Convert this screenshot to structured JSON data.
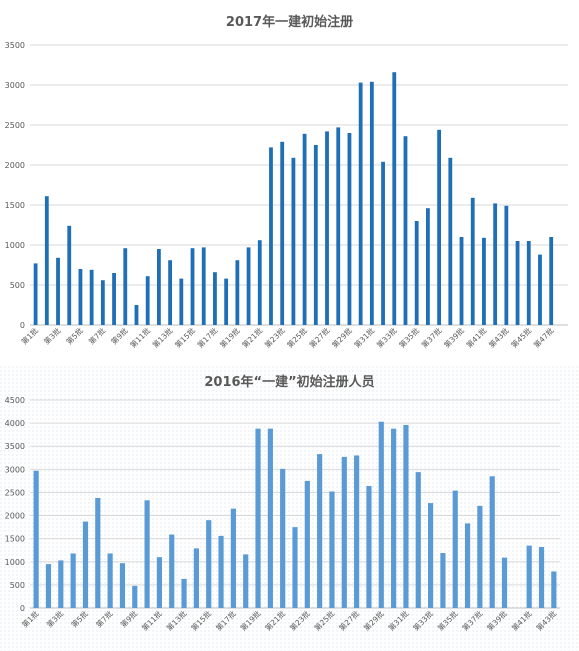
{
  "chart_data": [
    {
      "type": "bar",
      "title": "2017年一建初始注册",
      "xlabel": "",
      "ylabel": "",
      "ylim": [
        0,
        3500
      ],
      "yticks": [
        0,
        500,
        1000,
        1500,
        2000,
        2500,
        3000,
        3500
      ],
      "grid": true,
      "bar_color": "#1f6fb6",
      "categories": [
        "第1批",
        "第2批",
        "第3批",
        "第4批",
        "第5批",
        "第6批",
        "第7批",
        "第8批",
        "第9批",
        "第10批",
        "第11批",
        "第12批",
        "第13批",
        "第14批",
        "第15批",
        "第16批",
        "第17批",
        "第18批",
        "第19批",
        "第20批",
        "第21批",
        "第22批",
        "第23批",
        "第24批",
        "第25批",
        "第26批",
        "第27批",
        "第28批",
        "第29批",
        "第30批",
        "第31批",
        "第32批",
        "第33批",
        "第34批",
        "第35批",
        "第36批",
        "第37批",
        "第38批",
        "第39批",
        "第40批",
        "第41批",
        "第42批",
        "第43批",
        "第44批",
        "第45批",
        "第46批",
        "第47批",
        "第48批"
      ],
      "shown_tick_labels": [
        "第1批",
        "第3批",
        "第5批",
        "第7批",
        "第9批",
        "第11批",
        "第13批",
        "第15批",
        "第17批",
        "第19批",
        "第21批",
        "第23批",
        "第25批",
        "第27批",
        "第29批",
        "第31批",
        "第33批",
        "第35批",
        "第37批",
        "第39批",
        "第41批",
        "第43批",
        "第45批",
        "第47批"
      ],
      "values": [
        770,
        1610,
        840,
        1240,
        700,
        690,
        560,
        650,
        960,
        250,
        610,
        950,
        810,
        580,
        960,
        970,
        660,
        580,
        810,
        970,
        1060,
        2220,
        2290,
        2090,
        2390,
        2250,
        2420,
        2470,
        2400,
        3030,
        3040,
        2040,
        3160,
        2360,
        1300,
        1460,
        2440,
        2090,
        1100,
        1590,
        1090,
        1520,
        1490,
        1050,
        1050,
        880,
        1100,
        0
      ]
    },
    {
      "type": "bar",
      "title": "2016年“一建”初始注册人员",
      "xlabel": "",
      "ylabel": "",
      "ylim": [
        0,
        4500
      ],
      "yticks": [
        0,
        500,
        1000,
        1500,
        2000,
        2500,
        3000,
        3500,
        4000,
        4500
      ],
      "grid": true,
      "bar_color": "#5b9bd5",
      "categories": [
        "第1批",
        "第2批",
        "第3批",
        "第4批",
        "第5批",
        "第6批",
        "第7批",
        "第8批",
        "第9批",
        "第10批",
        "第11批",
        "第12批",
        "第13批",
        "第14批",
        "第15批",
        "第16批",
        "第17批",
        "第18批",
        "第19批",
        "第20批",
        "第21批",
        "第22批",
        "第23批",
        "第24批",
        "第25批",
        "第26批",
        "第27批",
        "第28批",
        "第29批",
        "第30批",
        "第31批",
        "第32批",
        "第33批",
        "第34批",
        "第35批",
        "第36批",
        "第37批",
        "第38批",
        "第39批",
        "第40批",
        "第41批",
        "第42批",
        "第43批"
      ],
      "shown_tick_labels": [
        "第1批",
        "第3批",
        "第5批",
        "第7批",
        "第9批",
        "第11批",
        "第13批",
        "第15批",
        "第17批",
        "第19批",
        "第21批",
        "第23批",
        "第25批",
        "第27批",
        "第29批",
        "第31批",
        "第33批",
        "第35批",
        "第37批",
        "第39批",
        "第41批",
        "第43批"
      ],
      "values": [
        2970,
        950,
        1030,
        1180,
        1870,
        2380,
        1180,
        970,
        480,
        2330,
        1100,
        1590,
        630,
        1290,
        1900,
        1560,
        2150,
        1160,
        3880,
        3880,
        3010,
        1750,
        2750,
        3330,
        2520,
        3270,
        3300,
        2640,
        4030,
        3880,
        3960,
        2940,
        2270,
        1190,
        2540,
        1830,
        2210,
        2850,
        1090,
        0,
        1350,
        1320,
        790
      ]
    }
  ]
}
